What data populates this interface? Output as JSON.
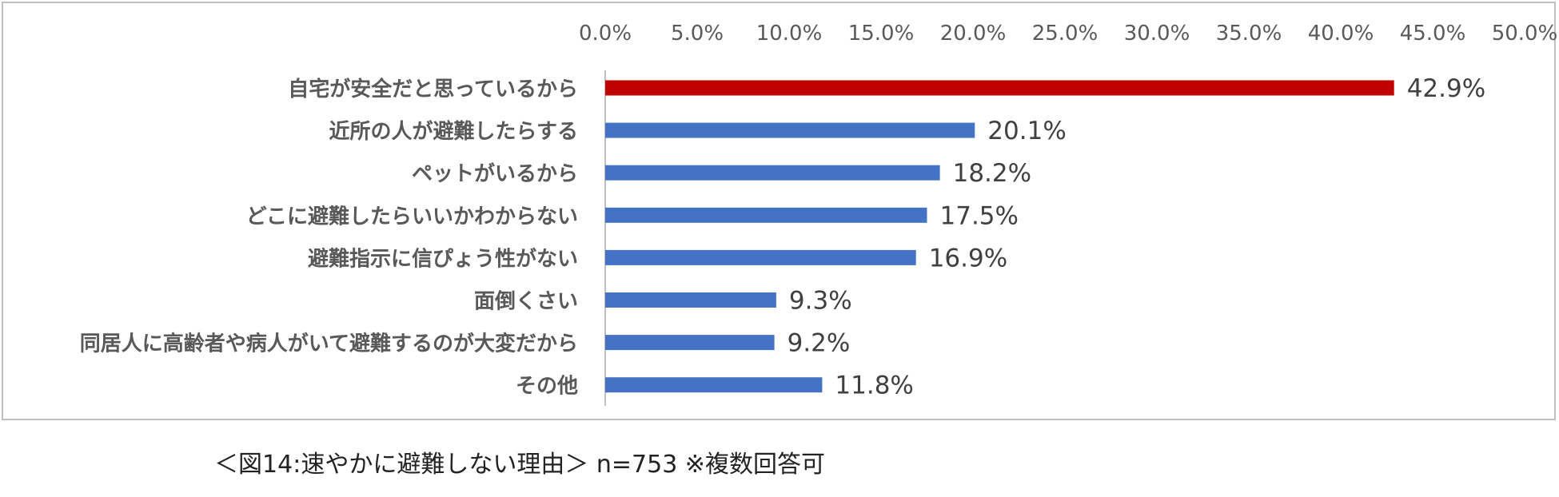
{
  "chart_data": {
    "type": "bar",
    "orientation": "horizontal",
    "xlim": [
      0,
      50
    ],
    "x_ticks": [
      "0.0%",
      "5.0%",
      "10.0%",
      "15.0%",
      "20.0%",
      "25.0%",
      "30.0%",
      "35.0%",
      "40.0%",
      "45.0%",
      "50.0%"
    ],
    "tick_values": [
      0,
      5,
      10,
      15,
      20,
      25,
      30,
      35,
      40,
      45,
      50
    ],
    "categories": [
      "自宅が安全だと思っているから",
      "近所の人が避難したらする",
      "ペットがいるから",
      "どこに避難したらいいかわからない",
      "避難指示に信ぴょう性がない",
      "面倒くさい",
      "同居人に高齢者や病人がいて避難するのが大変だから",
      "その他"
    ],
    "values": [
      42.9,
      20.1,
      18.2,
      17.5,
      16.9,
      9.3,
      9.2,
      11.8
    ],
    "value_labels": [
      "42.9%",
      "20.1%",
      "18.2%",
      "17.5%",
      "16.9%",
      "9.3%",
      "9.2%",
      "11.8%"
    ],
    "bar_colors": [
      "#c00000",
      "#4472c4",
      "#4472c4",
      "#4472c4",
      "#4472c4",
      "#4472c4",
      "#4472c4",
      "#4472c4"
    ],
    "axis_position": "top",
    "grid": false,
    "legend": "none"
  },
  "caption": "＜図14:速やかに避難しない理由＞ n=753 ※複数回答可"
}
